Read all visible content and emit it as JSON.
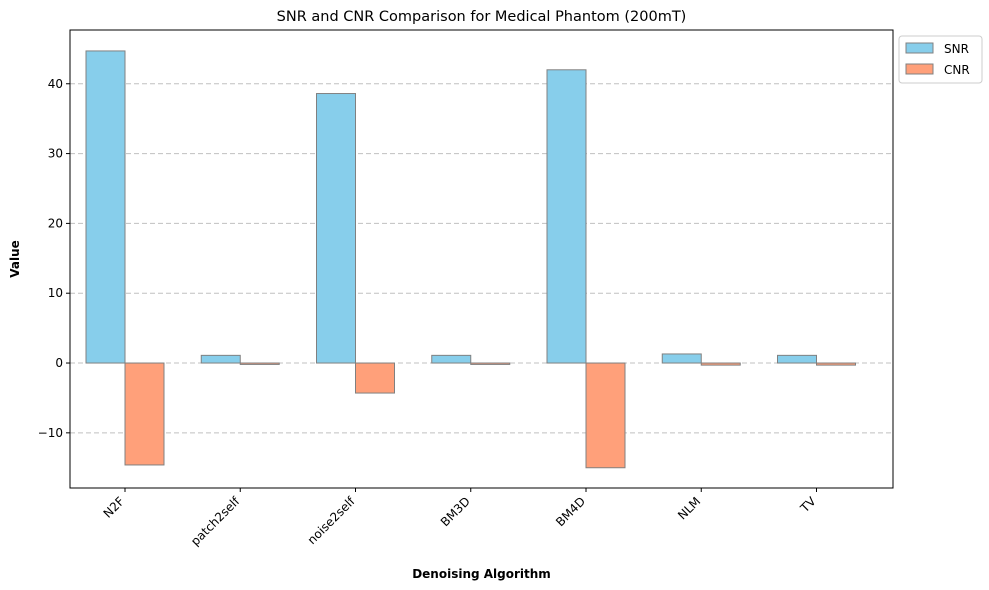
{
  "chart_data": {
    "type": "bar",
    "title": "SNR and CNR Comparison for Medical Phantom (200mT)",
    "xlabel": "Denoising Algorithm",
    "ylabel": "Value",
    "categories": [
      "N2F",
      "patch2self",
      "noise2self",
      "BM3D",
      "BM4D",
      "NLM",
      "TV"
    ],
    "series": [
      {
        "name": "SNR",
        "color": "#87ceeb",
        "values": [
          44.7,
          1.1,
          38.6,
          1.1,
          42.0,
          1.3,
          1.1
        ]
      },
      {
        "name": "CNR",
        "color": "#ffa07a",
        "values": [
          -14.6,
          -0.2,
          -4.3,
          -0.2,
          -15.0,
          -0.3,
          -0.3
        ]
      }
    ],
    "ylim": [
      -17.9,
      47.7
    ],
    "yticks": [
      -10,
      0,
      10,
      20,
      30,
      40
    ],
    "ytick_labels": [
      "−10",
      "0",
      "10",
      "20",
      "30",
      "40"
    ],
    "grid": "y-dashed",
    "legend_position": "top-right, outside plot",
    "bar_edge_color": "#808080"
  }
}
